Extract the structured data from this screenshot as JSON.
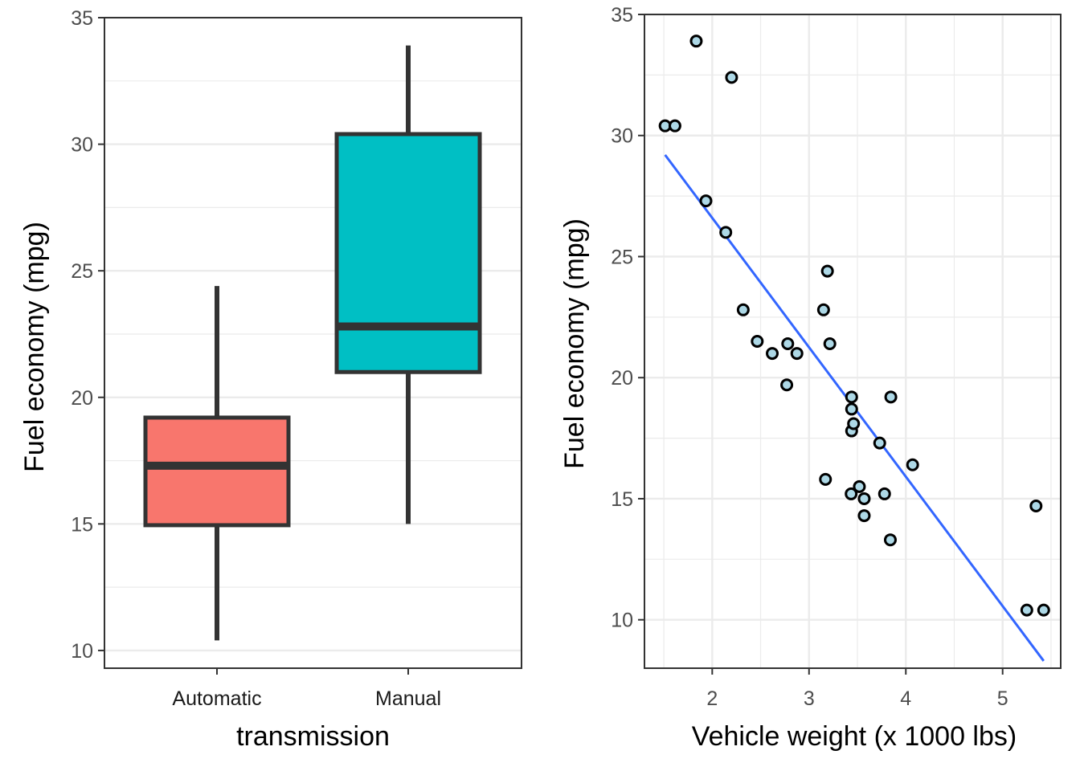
{
  "chart_data": [
    {
      "type": "box",
      "title": "",
      "xlabel": "transmission",
      "ylabel": "Fuel economy (mpg)",
      "ylim": [
        9.3,
        35
      ],
      "yticks": [
        10,
        15,
        20,
        25,
        30,
        35
      ],
      "grid": true,
      "categories": [
        "Automatic",
        "Manual"
      ],
      "boxes": [
        {
          "category": "Automatic",
          "min": 10.4,
          "q1": 14.95,
          "median": 17.3,
          "q3": 19.2,
          "max": 24.4,
          "color": "#F8766D"
        },
        {
          "category": "Manual",
          "min": 15.0,
          "q1": 21.0,
          "median": 22.8,
          "q3": 30.4,
          "max": 33.9,
          "color": "#00BFC4"
        }
      ]
    },
    {
      "type": "scatter",
      "title": "",
      "xlabel": "Vehicle weight (x 1000 lbs)",
      "ylabel": "Fuel economy (mpg)",
      "xlim": [
        1.3,
        5.6
      ],
      "ylim": [
        8.0,
        35.0
      ],
      "xticks": [
        2,
        3,
        4,
        5
      ],
      "yticks": [
        10,
        15,
        20,
        25,
        30,
        35
      ],
      "grid": true,
      "point_fill": "#ADD8E6",
      "point_stroke": "#000000",
      "points": [
        {
          "x": 1.513,
          "y": 30.4
        },
        {
          "x": 1.615,
          "y": 30.4
        },
        {
          "x": 1.835,
          "y": 33.9
        },
        {
          "x": 1.935,
          "y": 27.3
        },
        {
          "x": 2.14,
          "y": 26.0
        },
        {
          "x": 2.2,
          "y": 32.4
        },
        {
          "x": 2.32,
          "y": 22.8
        },
        {
          "x": 2.465,
          "y": 21.5
        },
        {
          "x": 2.62,
          "y": 21.0
        },
        {
          "x": 2.77,
          "y": 19.7
        },
        {
          "x": 2.78,
          "y": 21.4
        },
        {
          "x": 2.875,
          "y": 21.0
        },
        {
          "x": 3.15,
          "y": 22.8
        },
        {
          "x": 3.17,
          "y": 15.8
        },
        {
          "x": 3.19,
          "y": 24.4
        },
        {
          "x": 3.215,
          "y": 21.4
        },
        {
          "x": 3.435,
          "y": 15.2
        },
        {
          "x": 3.44,
          "y": 18.7
        },
        {
          "x": 3.44,
          "y": 19.2
        },
        {
          "x": 3.44,
          "y": 17.8
        },
        {
          "x": 3.46,
          "y": 18.1
        },
        {
          "x": 3.52,
          "y": 15.5
        },
        {
          "x": 3.57,
          "y": 14.3
        },
        {
          "x": 3.57,
          "y": 15.0
        },
        {
          "x": 3.73,
          "y": 17.3
        },
        {
          "x": 3.78,
          "y": 15.2
        },
        {
          "x": 3.84,
          "y": 13.3
        },
        {
          "x": 3.845,
          "y": 19.2
        },
        {
          "x": 4.07,
          "y": 16.4
        },
        {
          "x": 5.25,
          "y": 10.4
        },
        {
          "x": 5.345,
          "y": 14.7
        },
        {
          "x": 5.424,
          "y": 10.4
        }
      ],
      "fit_line": {
        "x": [
          1.513,
          5.424
        ],
        "y": [
          29.2,
          8.3
        ],
        "color": "#3366FF"
      }
    }
  ]
}
